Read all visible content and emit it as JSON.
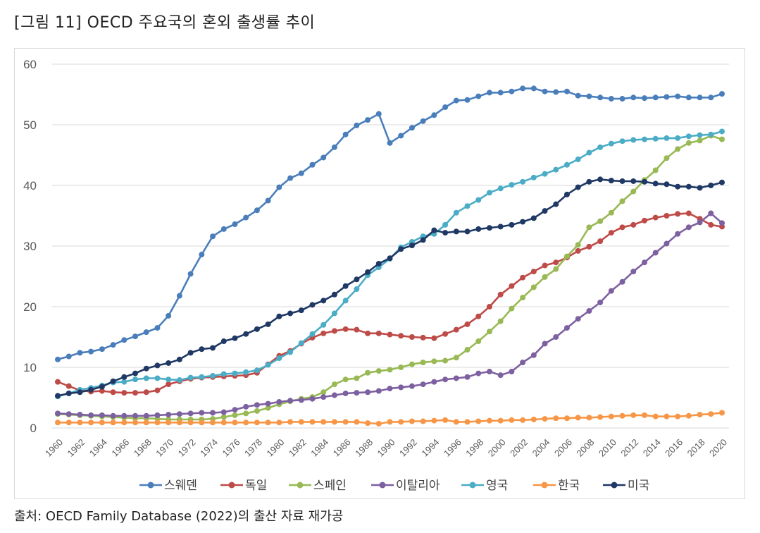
{
  "header": {
    "title": "[그림 11] OECD 주요국의 혼외 출생률 추이"
  },
  "footer": {
    "source": "출처: OECD Family Database (2022)의 출산 자료 재가공"
  },
  "chart_data": {
    "type": "line",
    "title": "",
    "xlabel": "",
    "ylabel": "",
    "ylim": [
      0,
      60
    ],
    "yticks": [
      0,
      10,
      20,
      30,
      40,
      50,
      60
    ],
    "xlim": [
      1960,
      2020
    ],
    "xtick_labels": [
      "1960",
      "1962",
      "1964",
      "1966",
      "1968",
      "1970",
      "1972",
      "1974",
      "1976",
      "1978",
      "1980",
      "1982",
      "1984",
      "1986",
      "1988",
      "1990",
      "1992",
      "1994",
      "1996",
      "1998",
      "2000",
      "2002",
      "2004",
      "2006",
      "2008",
      "2010",
      "2012",
      "2014",
      "2016",
      "2018",
      "2020"
    ],
    "grid": true,
    "legend_position": "bottom",
    "x": [
      1960,
      1961,
      1962,
      1963,
      1964,
      1965,
      1966,
      1967,
      1968,
      1969,
      1970,
      1971,
      1972,
      1973,
      1974,
      1975,
      1976,
      1977,
      1978,
      1979,
      1980,
      1981,
      1982,
      1983,
      1984,
      1985,
      1986,
      1987,
      1988,
      1989,
      1990,
      1991,
      1992,
      1993,
      1994,
      1995,
      1996,
      1997,
      1998,
      1999,
      2000,
      2001,
      2002,
      2003,
      2004,
      2005,
      2006,
      2007,
      2008,
      2009,
      2010,
      2011,
      2012,
      2013,
      2014,
      2015,
      2016,
      2017,
      2018,
      2019,
      2020
    ],
    "series": [
      {
        "name": "스웨덴",
        "color": "#4a7ebb",
        "values": [
          11.3,
          11.8,
          12.4,
          12.6,
          13.0,
          13.7,
          14.5,
          15.1,
          15.8,
          16.5,
          18.5,
          21.8,
          25.4,
          28.6,
          31.6,
          32.8,
          33.6,
          34.7,
          35.9,
          37.5,
          39.7,
          41.2,
          42.0,
          43.4,
          44.6,
          46.3,
          48.4,
          49.9,
          50.8,
          51.8,
          47.0,
          48.2,
          49.5,
          50.6,
          51.6,
          52.9,
          54.0,
          54.1,
          54.7,
          55.3,
          55.3,
          55.5,
          56.0,
          56.0,
          55.5,
          55.4,
          55.5,
          54.8,
          54.7,
          54.5,
          54.3,
          54.3,
          54.5,
          54.4,
          54.5,
          54.6,
          54.7,
          54.5,
          54.5,
          54.5,
          55.1
        ]
      },
      {
        "name": "독일",
        "color": "#be4b48",
        "values": [
          7.6,
          6.9,
          6.2,
          6.0,
          6.1,
          5.9,
          5.8,
          5.8,
          5.9,
          6.2,
          7.2,
          7.7,
          8.1,
          8.3,
          8.4,
          8.5,
          8.6,
          8.7,
          9.1,
          10.5,
          11.9,
          12.7,
          13.9,
          14.9,
          15.6,
          16.0,
          16.3,
          16.2,
          15.6,
          15.6,
          15.4,
          15.2,
          15.0,
          14.9,
          14.8,
          15.5,
          16.2,
          17.1,
          18.4,
          20.0,
          22.0,
          23.4,
          24.8,
          25.8,
          26.8,
          27.3,
          28.1,
          29.2,
          29.9,
          30.8,
          32.2,
          33.1,
          33.5,
          34.2,
          34.7,
          35.0,
          35.3,
          35.4,
          34.5,
          33.5,
          33.2
        ]
      },
      {
        "name": "스페인",
        "color": "#98b954",
        "values": [
          2.3,
          2.2,
          2.1,
          2.0,
          1.9,
          1.8,
          1.7,
          1.6,
          1.6,
          1.5,
          1.4,
          1.4,
          1.4,
          1.4,
          1.5,
          1.8,
          2.1,
          2.4,
          2.8,
          3.3,
          3.9,
          4.4,
          4.8,
          5.1,
          5.9,
          7.2,
          8.0,
          8.2,
          9.1,
          9.4,
          9.6,
          10.0,
          10.5,
          10.8,
          11.0,
          11.1,
          11.6,
          12.9,
          14.3,
          15.9,
          17.6,
          19.7,
          21.5,
          23.2,
          24.9,
          26.2,
          28.3,
          30.2,
          33.1,
          34.1,
          35.5,
          37.4,
          39.0,
          40.9,
          42.5,
          44.5,
          46.0,
          47.0,
          47.4,
          48.2,
          47.6
        ]
      },
      {
        "name": "이탈리아",
        "color": "#7d60a0",
        "values": [
          2.4,
          2.3,
          2.2,
          2.1,
          2.1,
          2.0,
          2.0,
          2.0,
          2.0,
          2.1,
          2.2,
          2.3,
          2.4,
          2.5,
          2.5,
          2.6,
          3.0,
          3.5,
          3.8,
          4.0,
          4.3,
          4.5,
          4.6,
          4.8,
          5.1,
          5.4,
          5.7,
          5.8,
          5.9,
          6.1,
          6.5,
          6.7,
          6.9,
          7.2,
          7.6,
          8.0,
          8.2,
          8.4,
          9.0,
          9.3,
          8.7,
          9.3,
          10.8,
          12.0,
          13.9,
          15.0,
          16.5,
          18.0,
          19.3,
          20.7,
          22.6,
          24.1,
          25.8,
          27.3,
          28.9,
          30.4,
          32.0,
          33.1,
          33.9,
          35.4,
          33.8
        ]
      },
      {
        "name": "영국",
        "color": "#4bacc6",
        "values": [
          5.2,
          5.7,
          6.3,
          6.6,
          7.0,
          7.5,
          7.6,
          8.0,
          8.2,
          8.2,
          8.0,
          7.9,
          8.3,
          8.4,
          8.6,
          8.9,
          9.0,
          9.2,
          9.5,
          10.4,
          11.5,
          12.5,
          14.0,
          15.5,
          17.0,
          18.9,
          21.0,
          22.9,
          25.2,
          26.5,
          27.9,
          29.8,
          30.7,
          31.6,
          32.0,
          33.5,
          35.5,
          36.6,
          37.6,
          38.8,
          39.5,
          40.1,
          40.6,
          41.3,
          41.9,
          42.6,
          43.4,
          44.3,
          45.4,
          46.3,
          46.9,
          47.3,
          47.5,
          47.6,
          47.7,
          47.8,
          47.8,
          48.1,
          48.3,
          48.4,
          48.9
        ]
      },
      {
        "name": "한국",
        "color": "#f79646",
        "values": [
          0.9,
          0.9,
          0.9,
          0.9,
          0.9,
          0.9,
          0.9,
          0.9,
          0.9,
          0.9,
          0.9,
          0.9,
          0.9,
          0.9,
          0.9,
          0.9,
          0.9,
          0.9,
          0.9,
          0.9,
          0.9,
          1.0,
          1.0,
          1.0,
          1.0,
          1.0,
          1.0,
          1.0,
          0.8,
          0.7,
          1.0,
          1.0,
          1.1,
          1.1,
          1.2,
          1.3,
          1.0,
          1.0,
          1.1,
          1.2,
          1.2,
          1.3,
          1.3,
          1.4,
          1.5,
          1.6,
          1.6,
          1.7,
          1.7,
          1.8,
          1.9,
          2.0,
          2.1,
          2.1,
          1.9,
          1.9,
          1.9,
          2.0,
          2.2,
          2.3,
          2.5
        ]
      },
      {
        "name": "미국",
        "color": "#1f3864",
        "values": [
          5.3,
          5.7,
          5.9,
          6.3,
          6.8,
          7.7,
          8.4,
          9.0,
          9.8,
          10.3,
          10.7,
          11.3,
          12.4,
          13.0,
          13.2,
          14.3,
          14.8,
          15.5,
          16.3,
          17.1,
          18.4,
          18.9,
          19.4,
          20.3,
          21.0,
          22.0,
          23.4,
          24.5,
          25.7,
          27.1,
          28.0,
          29.5,
          30.1,
          31.0,
          32.6,
          32.2,
          32.4,
          32.4,
          32.8,
          33.0,
          33.2,
          33.5,
          34.0,
          34.6,
          35.8,
          36.9,
          38.5,
          39.7,
          40.6,
          41.0,
          40.8,
          40.7,
          40.7,
          40.6,
          40.3,
          40.2,
          39.8,
          39.8,
          39.6,
          40.0,
          40.5
        ]
      }
    ]
  }
}
